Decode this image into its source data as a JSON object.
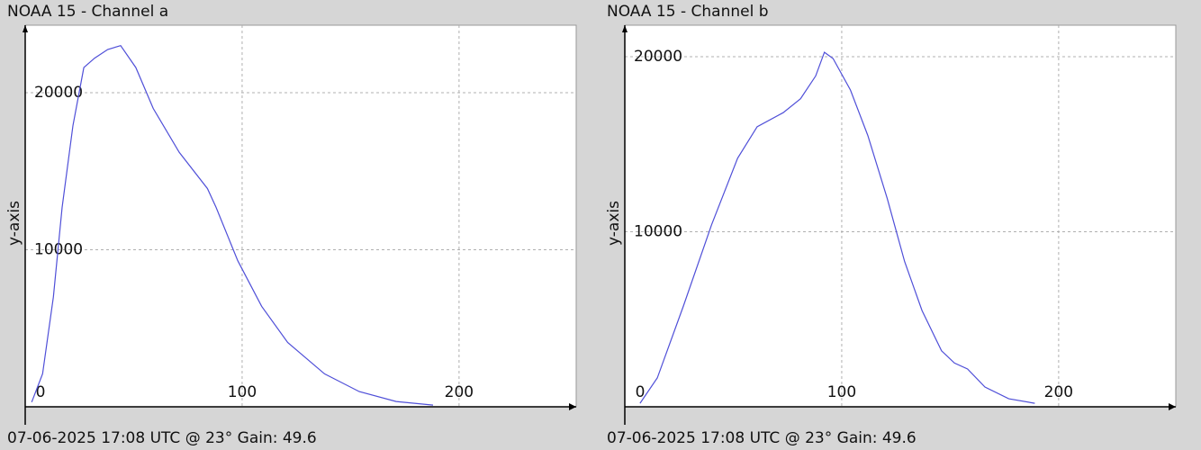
{
  "chart_data": [
    {
      "type": "line",
      "title": "NOAA 15 - Channel a",
      "y_label": "y-axis",
      "footer": "07-06-2025 17:08 UTC @ 23° Gain: 49.6",
      "x": [
        3,
        8,
        13,
        17,
        22,
        27,
        32,
        38,
        44,
        51,
        59,
        71,
        84,
        88,
        98,
        109,
        121,
        138,
        154,
        171,
        188
      ],
      "series": [
        {
          "color": "#4f4fd8",
          "values": [
            300,
            2100,
            7000,
            12700,
            17900,
            21600,
            22200,
            22750,
            23000,
            21600,
            19000,
            16200,
            13900,
            12700,
            9300,
            6400,
            4100,
            2100,
            970,
            340,
            110
          ]
        }
      ],
      "xlim": [
        0,
        254
      ],
      "xticks": [
        0,
        100,
        200
      ],
      "ylim": [
        0,
        24300
      ],
      "yticks": [
        10000,
        20000
      ],
      "grid": true
    },
    {
      "type": "line",
      "title": "NOAA 15 - Channel b",
      "y_label": "y-axis",
      "footer": "07-06-2025 17:08 UTC @ 23° Gain: 49.6",
      "x": [
        7,
        15,
        27,
        40,
        52,
        61,
        73,
        81,
        88,
        92,
        96,
        104,
        112,
        121,
        129,
        137,
        146,
        152,
        158,
        166,
        177,
        189
      ],
      "series": [
        {
          "color": "#4f4fd8",
          "values": [
            200,
            1650,
            5760,
            10400,
            14200,
            16000,
            16800,
            17600,
            18900,
            20250,
            19900,
            18100,
            15500,
            11900,
            8300,
            5500,
            3200,
            2500,
            2160,
            1130,
            460,
            200
          ]
        }
      ],
      "xlim": [
        0,
        254
      ],
      "xticks": [
        0,
        100,
        200
      ],
      "ylim": [
        0,
        21800
      ],
      "yticks": [
        10000,
        20000
      ],
      "grid": true
    }
  ]
}
